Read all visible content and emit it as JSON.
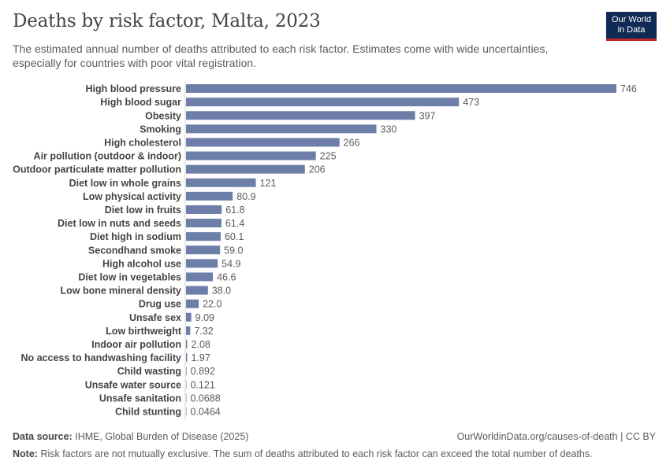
{
  "header": {
    "title": "Deaths by risk factor, Malta, 2023",
    "subtitle": "The estimated annual number of deaths attributed to each risk factor. Estimates come with wide uncertainties, especially for countries with poor vital registration."
  },
  "logo": {
    "line1": "Our World",
    "line2": "in Data",
    "bg_color": "#0f2a55",
    "accent_color": "#c02a2a"
  },
  "footer": {
    "source_label": "Data source:",
    "source_text": "IHME, Global Burden of Disease (2025)",
    "url_text": "OurWorldinData.org/causes-of-death | CC BY",
    "note_label": "Note:",
    "note_text": "Risk factors are not mutually exclusive. The sum of deaths attributed to each risk factor can exceed the total number of deaths."
  },
  "chart_data": {
    "type": "bar",
    "orientation": "horizontal",
    "bar_color": "#6d7fa9",
    "grid": false,
    "categories": [
      "High blood pressure",
      "High blood sugar",
      "Obesity",
      "Smoking",
      "High cholesterol",
      "Air pollution (outdoor & indoor)",
      "Outdoor particulate matter pollution",
      "Diet low in whole grains",
      "Low physical activity",
      "Diet low in fruits",
      "Diet low in nuts and seeds",
      "Diet high in sodium",
      "Secondhand smoke",
      "High alcohol use",
      "Diet low in vegetables",
      "Low bone mineral density",
      "Drug use",
      "Unsafe sex",
      "Low birthweight",
      "Indoor air pollution",
      "No access to handwashing facility",
      "Child wasting",
      "Unsafe water source",
      "Unsafe sanitation",
      "Child stunting"
    ],
    "values": [
      746,
      473,
      397,
      330,
      266,
      225,
      206,
      121,
      80.9,
      61.8,
      61.4,
      60.1,
      59.0,
      54.9,
      46.6,
      38.0,
      22.0,
      9.09,
      7.32,
      2.08,
      1.97,
      0.892,
      0.121,
      0.0688,
      0.0464
    ],
    "value_labels": [
      "746",
      "473",
      "397",
      "330",
      "266",
      "225",
      "206",
      "121",
      "80.9",
      "61.8",
      "61.4",
      "60.1",
      "59.0",
      "54.9",
      "46.6",
      "38.0",
      "22.0",
      "9.09",
      "7.32",
      "2.08",
      "1.97",
      "0.892",
      "0.121",
      "0.0688",
      "0.0464"
    ],
    "xlim": [
      0,
      746
    ]
  }
}
